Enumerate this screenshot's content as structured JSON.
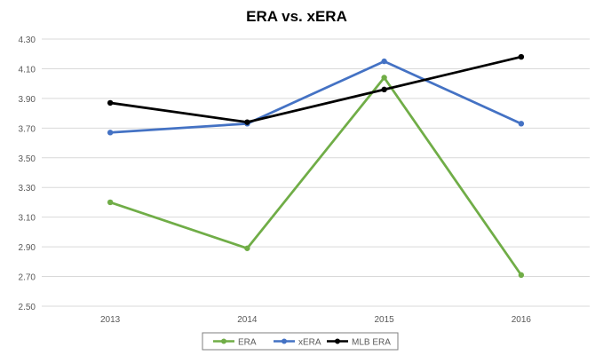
{
  "chart_data": {
    "type": "line",
    "title": "ERA vs. xERA",
    "xlabel": "",
    "ylabel": "",
    "categories": [
      "2013",
      "2014",
      "2015",
      "2016"
    ],
    "ylim": [
      2.5,
      4.3
    ],
    "yticks": [
      "2.50",
      "2.70",
      "2.90",
      "3.10",
      "3.30",
      "3.50",
      "3.70",
      "3.90",
      "4.10",
      "4.30"
    ],
    "grid": true,
    "legend_position": "bottom",
    "series": [
      {
        "name": "ERA",
        "color": "#70AD47",
        "values": [
          3.2,
          2.89,
          4.04,
          2.71
        ]
      },
      {
        "name": "xERA",
        "color": "#4472C4",
        "values": [
          3.67,
          3.73,
          4.15,
          3.73
        ]
      },
      {
        "name": "MLB ERA",
        "color": "#000000",
        "values": [
          3.87,
          3.74,
          3.96,
          4.18
        ]
      }
    ]
  }
}
